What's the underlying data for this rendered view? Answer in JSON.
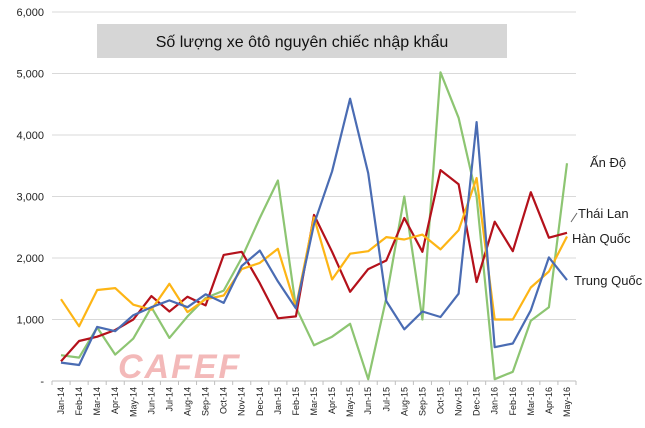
{
  "chart_data": {
    "type": "line",
    "title": "Số lượng xe ôtô nguyên chiếc nhập khẩu",
    "watermark": "CAFEF",
    "ylim": [
      0,
      6000
    ],
    "yticks": [
      "-",
      "1,000",
      "2,000",
      "3,000",
      "4,000",
      "5,000",
      "6,000"
    ],
    "grid": true,
    "x": [
      "Jan-14",
      "Feb-14",
      "Mar-14",
      "Apr-14",
      "May-14",
      "Jun-14",
      "Jul-14",
      "Aug-14",
      "Sep-14",
      "Oct-14",
      "Nov-14",
      "Dec-14",
      "Jan-15",
      "Feb-15",
      "Mar-15",
      "Apr-15",
      "May-15",
      "Jun-15",
      "Jul-15",
      "Aug-15",
      "Sep-15",
      "Oct-15",
      "Nov-15",
      "Dec-15",
      "Jan-16",
      "Feb-16",
      "Mar-16",
      "Apr-16",
      "May-16"
    ],
    "xticks": [
      "Jan-14",
      "Feb-14",
      "Mar-14",
      "Apr-14",
      "May-14",
      "Jun-14",
      "Jul-14",
      "Aug-14",
      "Sep-14",
      "Oct-14",
      "Nov-14",
      "Dec-14",
      "Jan-15",
      "Feb-15",
      "Mar-15",
      "Apr-15",
      "May-15",
      "Jun-15",
      "Jul-15",
      "Aug-15",
      "Sep-15",
      "Oct-15",
      "Nov-15",
      "Dec-15",
      "Jan-16",
      "Feb-16",
      "Mar-16",
      "Apr-16",
      "May-16"
    ],
    "series": [
      {
        "name": "Ấn Độ",
        "color": "#8dc572",
        "values": [
          420,
          380,
          870,
          430,
          690,
          1200,
          700,
          1050,
          1350,
          1470,
          2000,
          2650,
          3260,
          1200,
          580,
          720,
          930,
          30,
          1350,
          3000,
          1000,
          5020,
          4280,
          3000,
          30,
          150,
          980,
          1200,
          3540
        ]
      },
      {
        "name": "Thái Lan",
        "color": "#b4111b",
        "values": [
          320,
          650,
          720,
          830,
          1000,
          1380,
          1130,
          1370,
          1230,
          2050,
          2100,
          1590,
          1020,
          1050,
          2700,
          2100,
          1450,
          1820,
          1960,
          2650,
          2100,
          3430,
          3200,
          1610,
          2590,
          2110,
          3070,
          2330,
          2410
        ]
      },
      {
        "name": "Hàn Quốc",
        "color": "#fdb515",
        "values": [
          1330,
          890,
          1480,
          1510,
          1240,
          1160,
          1580,
          1120,
          1330,
          1390,
          1820,
          1920,
          2150,
          1200,
          2660,
          1650,
          2070,
          2110,
          2340,
          2300,
          2380,
          2140,
          2450,
          3300,
          1000,
          1000,
          1520,
          1780,
          2350
        ]
      },
      {
        "name": "Trung Quốc",
        "color": "#4a6cb3",
        "values": [
          300,
          260,
          880,
          810,
          1070,
          1200,
          1310,
          1200,
          1410,
          1270,
          1870,
          2120,
          1620,
          1180,
          2550,
          3410,
          4590,
          3380,
          1300,
          840,
          1130,
          1040,
          1420,
          4210,
          550,
          610,
          1150,
          2010,
          1640
        ]
      }
    ]
  }
}
